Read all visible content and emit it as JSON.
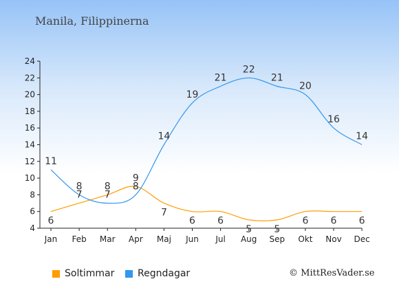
{
  "title": "Manila, Filippinerna",
  "credit": "© MittResVader.se",
  "legend": {
    "sun_label": "Soltimmar",
    "rain_label": "Regndagar"
  },
  "colors": {
    "sun": "#ff9c00",
    "rain": "#3197ef",
    "axis": "#222222"
  },
  "chart_data": {
    "type": "line",
    "categories": [
      "Jan",
      "Feb",
      "Mar",
      "Apr",
      "Maj",
      "Jun",
      "Jul",
      "Aug",
      "Sep",
      "Okt",
      "Nov",
      "Dec"
    ],
    "ylim": [
      4,
      24
    ],
    "yticks": [
      4,
      6,
      8,
      10,
      12,
      14,
      16,
      18,
      20,
      22,
      24
    ],
    "grid": false,
    "legend_position": "bottom",
    "series": [
      {
        "name": "Soltimmar",
        "color": "#ff9c00",
        "values": [
          6,
          7,
          8,
          9,
          7,
          6,
          6,
          5,
          5,
          6,
          6,
          6
        ]
      },
      {
        "name": "Regndagar",
        "color": "#3197ef",
        "values": [
          11,
          8,
          7,
          8,
          14,
          19,
          21,
          22,
          21,
          20,
          16,
          14
        ]
      }
    ]
  }
}
